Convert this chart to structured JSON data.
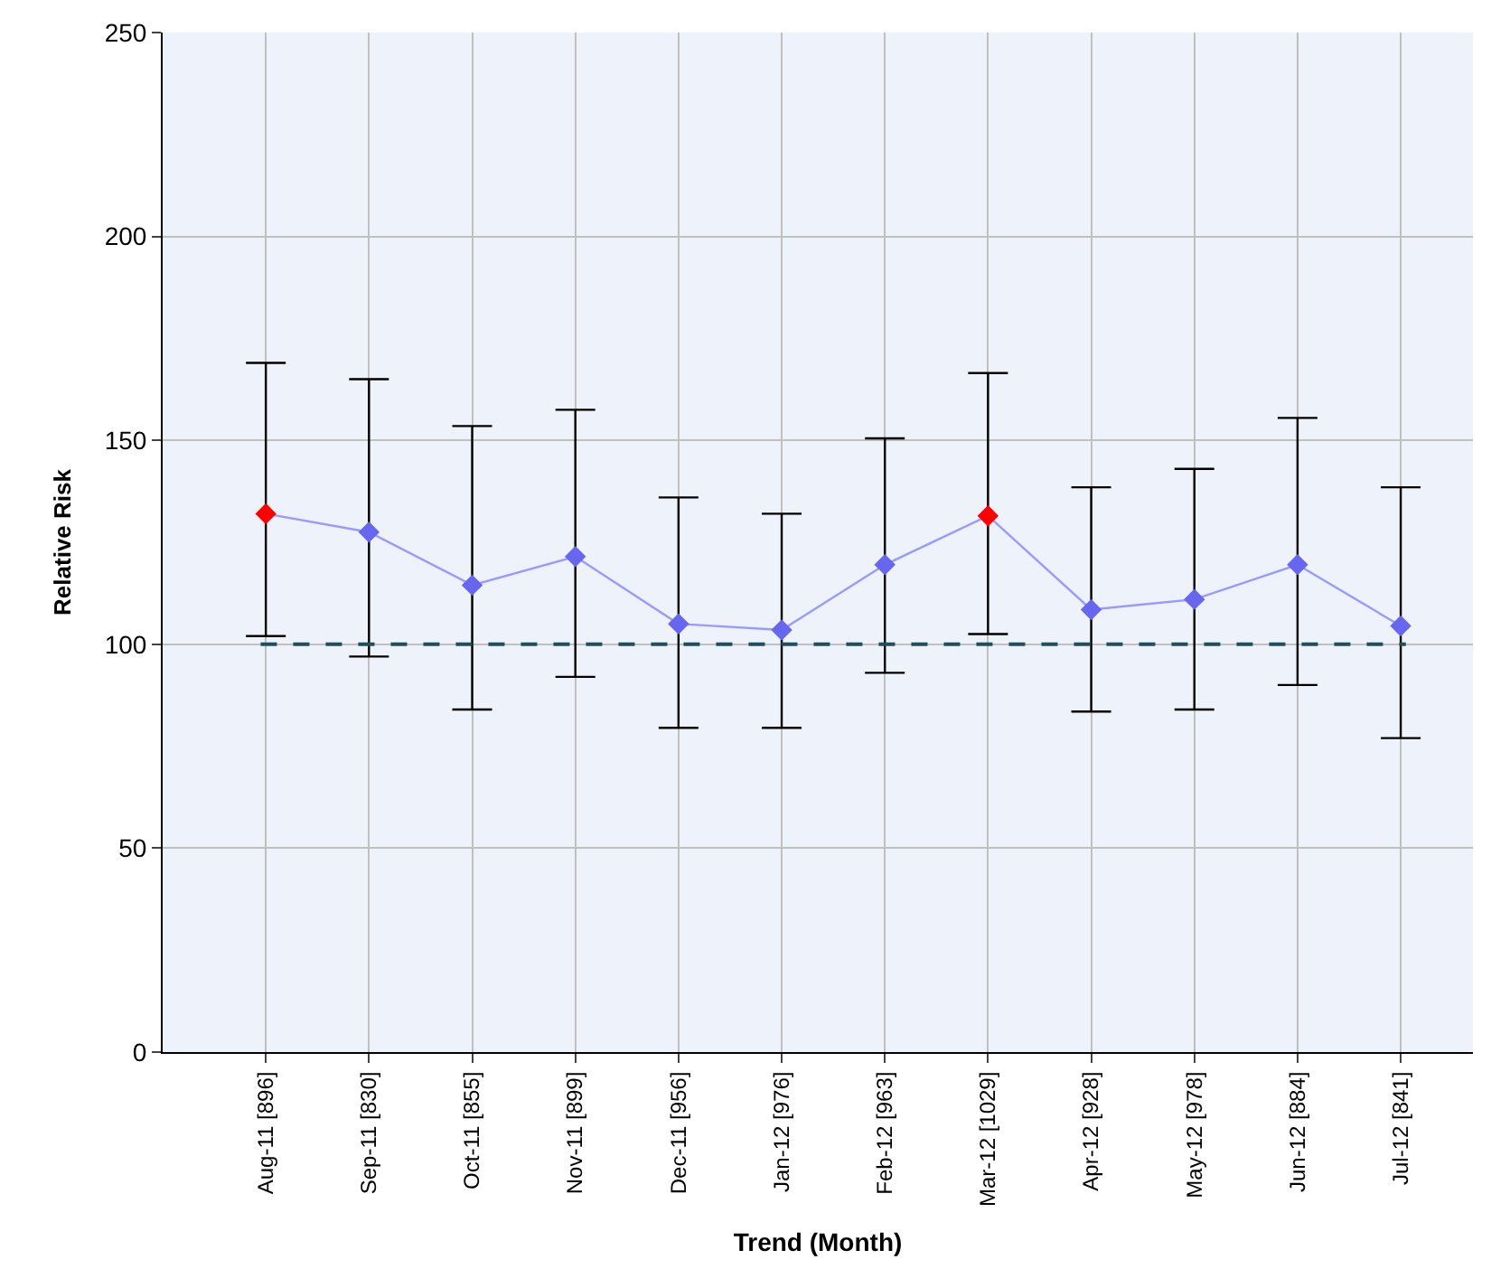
{
  "chart_data": {
    "type": "line",
    "xlabel": "Trend (Month)",
    "ylabel": "Relative Risk",
    "categories": [
      "Aug-11 [896]",
      "Sep-11 [830]",
      "Oct-11 [855]",
      "Nov-11 [899]",
      "Dec-11 [956]",
      "Jan-12 [976]",
      "Feb-12 [963]",
      "Mar-12 [1029]",
      "Apr-12 [928]",
      "May-12 [978]",
      "Jun-12 [884]",
      "Jul-12 [841]"
    ],
    "series": [
      {
        "color": "#9999ff",
        "colors": [
          "#ff0000",
          "#6666ee",
          "#6666ee",
          "#6666ee",
          "#6666ee",
          "#6666ee",
          "#6666ee",
          "#ff0000",
          "#6666ee",
          "#6666ee",
          "#6666ee",
          "#6666ee"
        ],
        "values": [
          132,
          127.5,
          114.5,
          121.5,
          105,
          103.5,
          119.5,
          131.5,
          108.5,
          111,
          119.5,
          104.5
        ],
        "errors": [
          [
            102,
            169
          ],
          [
            97,
            165
          ],
          [
            84,
            153.5
          ],
          [
            92,
            157.5
          ],
          [
            79.5,
            136
          ],
          [
            79.5,
            132
          ],
          [
            93,
            150.5
          ],
          [
            102.5,
            166.5
          ],
          [
            83.5,
            138.5
          ],
          [
            84,
            143
          ],
          [
            90,
            155.5
          ],
          [
            77,
            138.5
          ]
        ]
      }
    ],
    "ylim": [
      0,
      250
    ],
    "yticks": [
      0,
      50,
      100,
      150,
      200,
      250
    ],
    "ref_lines": [
      {
        "axis": "y",
        "value": 100,
        "color": "#1f4e5f",
        "line_style": "dashed"
      }
    ],
    "grid": true,
    "marker": "diamond",
    "line_style": "solid"
  }
}
